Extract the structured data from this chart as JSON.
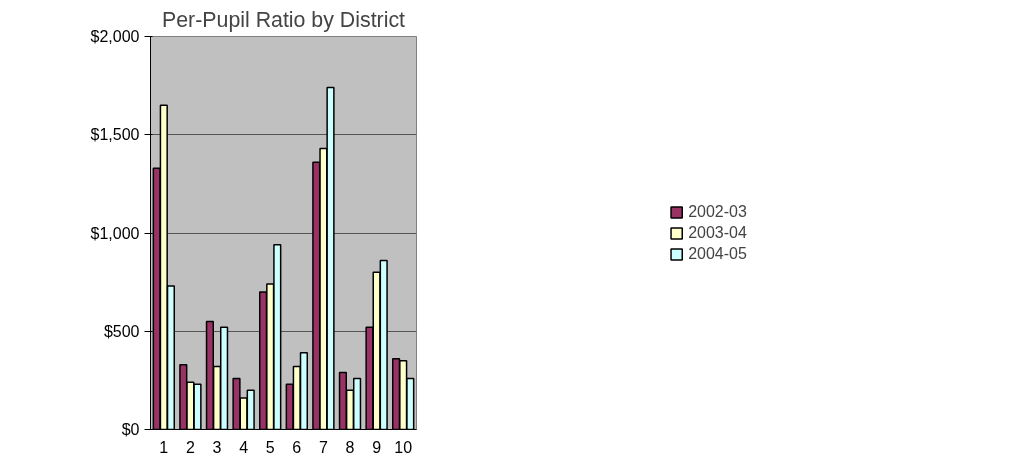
{
  "chart_data": {
    "type": "bar",
    "title": "Per-Pupil Ratio by District",
    "categories": [
      "1",
      "2",
      "3",
      "4",
      "5",
      "6",
      "7",
      "8",
      "9",
      "10"
    ],
    "series": [
      {
        "name": "2002-03",
        "color": "#993366",
        "values": [
          1330,
          330,
          550,
          260,
          700,
          230,
          1360,
          290,
          520,
          360
        ]
      },
      {
        "name": "2003-04",
        "color": "#ffffcc",
        "values": [
          1650,
          240,
          320,
          160,
          740,
          320,
          1430,
          200,
          800,
          350
        ]
      },
      {
        "name": "2004-05",
        "color": "#ccffff",
        "values": [
          730,
          230,
          520,
          200,
          940,
          390,
          1740,
          260,
          860,
          260
        ]
      }
    ],
    "ylim": [
      0,
      2000
    ],
    "yticks": [
      {
        "value": 0,
        "label": "$0"
      },
      {
        "value": 500,
        "label": "$500"
      },
      {
        "value": 1000,
        "label": "$1,000"
      },
      {
        "value": 1500,
        "label": "$1,500"
      },
      {
        "value": 2000,
        "label": "$2,000"
      }
    ],
    "grid": "y",
    "legend": "right"
  }
}
